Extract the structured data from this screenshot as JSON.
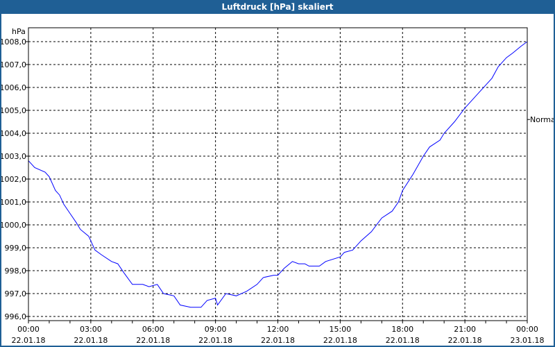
{
  "window": {
    "title": "Luftdruck [hPa] skaliert"
  },
  "chart_data": {
    "type": "line",
    "title": "Luftdruck [hPa] skaliert",
    "ylabel": "hPa",
    "xlabel": "",
    "ylim": [
      996.0,
      1008.0
    ],
    "xlim_hours": [
      0,
      24
    ],
    "grid": true,
    "y_ticks": [
      "996,0",
      "997,0",
      "998,0",
      "999,0",
      "1000,0",
      "1001,0",
      "1002,0",
      "1003,0",
      "1004,0",
      "1005,0",
      "1006,0",
      "1007,0",
      "1008,0"
    ],
    "x_ticks": [
      {
        "time": "00:00",
        "date": "22.01.18"
      },
      {
        "time": "03:00",
        "date": "22.01.18"
      },
      {
        "time": "06:00",
        "date": "22.01.18"
      },
      {
        "time": "09:00",
        "date": "22.01.18"
      },
      {
        "time": "12:00",
        "date": "22.01.18"
      },
      {
        "time": "15:00",
        "date": "22.01.18"
      },
      {
        "time": "18:00",
        "date": "22.01.18"
      },
      {
        "time": "21:00",
        "date": "22.01.18"
      },
      {
        "time": "00:00",
        "date": "23.01.18"
      }
    ],
    "reference_label": "Normal",
    "reference_value": 1004.6,
    "series": [
      {
        "name": "Luftdruck",
        "color": "#0000ff",
        "x": [
          0,
          0.3,
          0.8,
          1.0,
          1.3,
          1.5,
          1.7,
          2.0,
          2.3,
          2.5,
          2.9,
          3.0,
          3.2,
          3.5,
          4.0,
          4.3,
          4.6,
          5.0,
          5.5,
          5.8,
          6.2,
          6.5,
          7.0,
          7.3,
          7.8,
          8.3,
          8.6,
          9.0,
          9.1,
          9.5,
          10.0,
          10.5,
          11.0,
          11.3,
          11.8,
          12.0,
          12.3,
          12.7,
          13.0,
          13.3,
          13.5,
          14.0,
          14.3,
          15.0,
          15.2,
          15.6,
          16.0,
          16.5,
          17.0,
          17.5,
          17.8,
          18.0,
          18.5,
          19.0,
          19.3,
          19.8,
          20.0,
          20.5,
          21.0,
          21.3,
          21.7,
          22.0,
          22.3,
          22.6,
          23.0,
          23.3,
          23.7,
          24.0
        ],
        "y": [
          1002.8,
          1002.5,
          1002.3,
          1002.1,
          1001.5,
          1001.3,
          1000.9,
          1000.5,
          1000.1,
          999.8,
          999.5,
          999.3,
          998.9,
          998.7,
          998.4,
          998.3,
          997.9,
          997.4,
          997.4,
          997.3,
          997.4,
          997.0,
          996.9,
          996.5,
          996.4,
          996.4,
          996.7,
          996.8,
          996.5,
          997.0,
          996.9,
          997.1,
          997.4,
          997.7,
          997.8,
          997.8,
          998.1,
          998.4,
          998.3,
          998.3,
          998.2,
          998.2,
          998.4,
          998.6,
          998.8,
          998.9,
          999.3,
          999.7,
          1000.3,
          1000.6,
          1001.0,
          1001.5,
          1002.2,
          1003.0,
          1003.4,
          1003.7,
          1004.0,
          1004.5,
          1005.1,
          1005.4,
          1005.8,
          1006.1,
          1006.4,
          1006.9,
          1007.3,
          1007.5,
          1007.8,
          1008.0
        ]
      }
    ]
  }
}
